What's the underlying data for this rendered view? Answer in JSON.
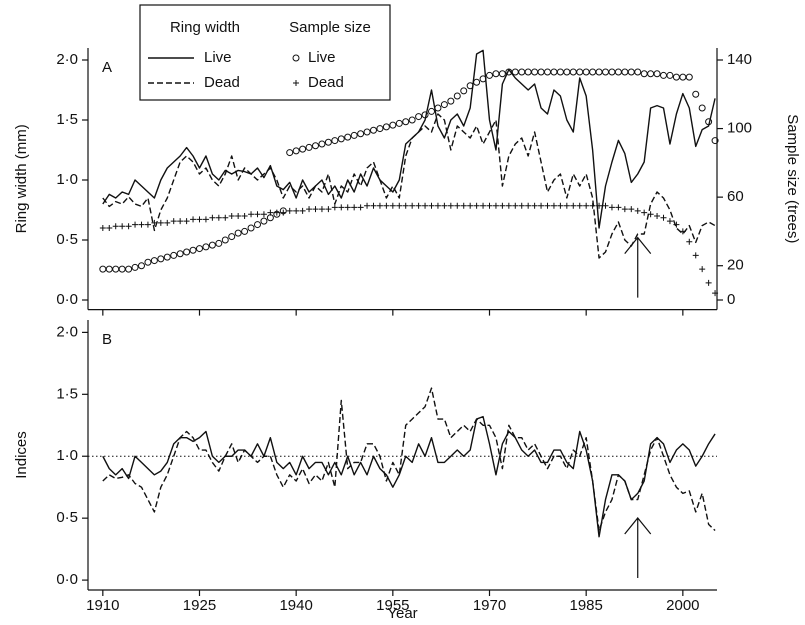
{
  "chart_data": [
    {
      "type": "line",
      "panel_label": "A",
      "y_label": "Ring width (mm)",
      "y2_label": "Sample size (trees)",
      "legend_titles": [
        "Ring width",
        "Sample size"
      ],
      "x": [
        1910,
        1911,
        1912,
        1913,
        1914,
        1915,
        1916,
        1917,
        1918,
        1919,
        1920,
        1921,
        1922,
        1923,
        1924,
        1925,
        1926,
        1927,
        1928,
        1929,
        1930,
        1931,
        1932,
        1933,
        1934,
        1935,
        1936,
        1937,
        1938,
        1939,
        1940,
        1941,
        1942,
        1943,
        1944,
        1945,
        1946,
        1947,
        1948,
        1949,
        1950,
        1951,
        1952,
        1953,
        1954,
        1955,
        1956,
        1957,
        1958,
        1959,
        1960,
        1961,
        1962,
        1963,
        1964,
        1965,
        1966,
        1967,
        1968,
        1969,
        1970,
        1971,
        1972,
        1973,
        1974,
        1975,
        1976,
        1977,
        1978,
        1979,
        1980,
        1981,
        1982,
        1983,
        1984,
        1985,
        1986,
        1987,
        1988,
        1989,
        1990,
        1991,
        1992,
        1993,
        1994,
        1995,
        1996,
        1997,
        1998,
        1999,
        2000,
        2001,
        2002,
        2003,
        2004,
        2005
      ],
      "xlim": [
        1907.7,
        2005.3
      ],
      "xticks": [
        1910,
        1925,
        1940,
        1955,
        1970,
        1985,
        2000
      ],
      "ylim": [
        -0.08,
        2.1
      ],
      "yticks": [
        {
          "value": 0,
          "label": "0·0"
        },
        {
          "value": 0.5,
          "label": "0·5"
        },
        {
          "value": 1,
          "label": "1·0"
        },
        {
          "value": 1.5,
          "label": "1·5"
        },
        {
          "value": 2,
          "label": "2·0"
        }
      ],
      "y2lim": [
        -5.6,
        147
      ],
      "y2ticks": [
        0,
        20,
        60,
        100,
        140
      ],
      "arrow_x": 1993,
      "series": [
        {
          "name": "Live",
          "color": "#111111",
          "style": "solid",
          "values": [
            0.8,
            0.88,
            0.85,
            0.9,
            0.88,
            1.0,
            0.95,
            0.9,
            0.85,
            1.0,
            1.1,
            1.15,
            1.2,
            1.27,
            1.2,
            1.1,
            1.2,
            1.05,
            1.0,
            1.08,
            1.05,
            1.08,
            1.07,
            1.05,
            1.1,
            1.02,
            1.12,
            0.95,
            0.92,
            0.98,
            0.85,
            1.0,
            0.9,
            0.95,
            1.0,
            0.88,
            0.95,
            0.85,
            1.0,
            0.9,
            1.05,
            0.95,
            1.1,
            1.0,
            0.95,
            0.9,
            1.0,
            1.3,
            1.35,
            1.4,
            1.5,
            1.75,
            1.45,
            1.35,
            1.5,
            1.55,
            1.45,
            1.6,
            2.05,
            2.08,
            1.5,
            1.25,
            1.8,
            1.92,
            1.85,
            1.8,
            1.75,
            1.8,
            1.6,
            1.55,
            1.75,
            1.7,
            1.5,
            1.4,
            1.85,
            1.7,
            1.25,
            0.6,
            0.95,
            1.15,
            1.33,
            1.22,
            0.98,
            1.05,
            1.15,
            1.6,
            1.62,
            1.6,
            1.3,
            1.55,
            1.72,
            1.6,
            1.28,
            1.42,
            1.45,
            1.68
          ]
        },
        {
          "name": "Dead",
          "color": "#111111",
          "style": "dashed",
          "values": [
            0.85,
            0.78,
            0.82,
            0.8,
            0.86,
            0.8,
            0.78,
            0.85,
            0.58,
            0.75,
            0.85,
            1.0,
            1.15,
            1.2,
            1.15,
            1.05,
            1.1,
            1.0,
            0.95,
            1.05,
            1.2,
            1.0,
            1.1,
            1.05,
            1.0,
            1.05,
            1.1,
            1.0,
            0.85,
            0.95,
            0.9,
            0.95,
            0.85,
            0.95,
            0.9,
            1.05,
            0.8,
            0.95,
            0.9,
            1.05,
            0.95,
            1.1,
            1.15,
            1.0,
            0.85,
            0.95,
            0.85,
            1.2,
            1.35,
            1.4,
            1.45,
            1.4,
            1.55,
            1.5,
            1.25,
            1.45,
            1.4,
            1.35,
            1.45,
            1.3,
            1.4,
            1.5,
            0.95,
            1.2,
            1.3,
            1.35,
            1.2,
            1.4,
            1.15,
            0.9,
            1.0,
            1.05,
            0.85,
            1.05,
            0.95,
            1.05,
            0.85,
            0.35,
            0.4,
            0.55,
            0.65,
            0.5,
            0.45,
            0.55,
            0.55,
            0.8,
            0.9,
            0.85,
            0.75,
            0.6,
            0.55,
            0.62,
            0.48,
            0.62,
            0.65,
            0.62
          ]
        },
        {
          "name": "Live",
          "color": "#111111",
          "marker": "circle",
          "axis": "y2",
          "values": [
            18,
            18,
            18,
            18,
            18,
            19,
            20,
            22,
            23,
            24,
            25,
            26,
            27,
            28,
            29,
            30,
            31,
            32,
            33,
            35,
            37,
            39,
            40,
            42,
            44,
            46,
            48,
            50,
            52,
            86,
            87,
            88,
            89,
            90,
            91,
            92,
            93,
            94,
            95,
            96,
            97,
            98,
            99,
            100,
            101,
            102,
            103,
            104,
            105,
            107,
            108,
            110,
            112,
            114,
            116,
            119,
            122,
            125,
            127,
            129,
            131,
            132,
            132,
            133,
            133,
            133,
            133,
            133,
            133,
            133,
            133,
            133,
            133,
            133,
            133,
            133,
            133,
            133,
            133,
            133,
            133,
            133,
            133,
            133,
            132,
            132,
            132,
            131,
            131,
            130,
            130,
            130,
            120,
            112,
            104,
            93
          ]
        },
        {
          "name": "Dead",
          "color": "#111111",
          "marker": "plus",
          "axis": "y2",
          "values": [
            42,
            42,
            43,
            43,
            43,
            44,
            44,
            44,
            45,
            45,
            45,
            46,
            46,
            46,
            47,
            47,
            47,
            48,
            48,
            48,
            49,
            49,
            49,
            50,
            50,
            50,
            51,
            51,
            51,
            52,
            52,
            52,
            53,
            53,
            53,
            53,
            54,
            54,
            54,
            54,
            54,
            55,
            55,
            55,
            55,
            55,
            55,
            55,
            55,
            55,
            55,
            55,
            55,
            55,
            55,
            55,
            55,
            55,
            55,
            55,
            55,
            55,
            55,
            55,
            55,
            55,
            55,
            55,
            55,
            55,
            55,
            55,
            55,
            55,
            55,
            55,
            55,
            55,
            55,
            54,
            54,
            53,
            53,
            52,
            51,
            50,
            49,
            48,
            46,
            44,
            40,
            34,
            26,
            18,
            10,
            4
          ]
        }
      ]
    },
    {
      "type": "line",
      "panel_label": "B",
      "y_label": "Indices",
      "x_label": "Year",
      "x": [
        1910,
        1911,
        1912,
        1913,
        1914,
        1915,
        1916,
        1917,
        1918,
        1919,
        1920,
        1921,
        1922,
        1923,
        1924,
        1925,
        1926,
        1927,
        1928,
        1929,
        1930,
        1931,
        1932,
        1933,
        1934,
        1935,
        1936,
        1937,
        1938,
        1939,
        1940,
        1941,
        1942,
        1943,
        1944,
        1945,
        1946,
        1947,
        1948,
        1949,
        1950,
        1951,
        1952,
        1953,
        1954,
        1955,
        1956,
        1957,
        1958,
        1959,
        1960,
        1961,
        1962,
        1963,
        1964,
        1965,
        1966,
        1967,
        1968,
        1969,
        1970,
        1971,
        1972,
        1973,
        1974,
        1975,
        1976,
        1977,
        1978,
        1979,
        1980,
        1981,
        1982,
        1983,
        1984,
        1985,
        1986,
        1987,
        1988,
        1989,
        1990,
        1991,
        1992,
        1993,
        1994,
        1995,
        1996,
        1997,
        1998,
        1999,
        2000,
        2001,
        2002,
        2003,
        2004,
        2005
      ],
      "xlim": [
        1907.7,
        2005.3
      ],
      "xticks": [
        1910,
        1925,
        1940,
        1955,
        1970,
        1985,
        2000
      ],
      "ylim": [
        -0.08,
        2.1
      ],
      "yticks": [
        {
          "value": 0,
          "label": "0·0"
        },
        {
          "value": 0.5,
          "label": "0·5"
        },
        {
          "value": 1,
          "label": "1·0"
        },
        {
          "value": 1.5,
          "label": "1·5"
        },
        {
          "value": 2,
          "label": "2·0"
        }
      ],
      "reference_line": 1,
      "arrow_x": 1993,
      "series": [
        {
          "name": "Live",
          "color": "#111111",
          "style": "solid",
          "values": [
            1.0,
            0.9,
            0.85,
            0.9,
            0.82,
            1.0,
            0.95,
            0.9,
            0.85,
            0.88,
            0.95,
            1.1,
            1.15,
            1.15,
            1.12,
            1.15,
            1.2,
            1.0,
            0.95,
            1.0,
            1.0,
            1.05,
            1.05,
            1.0,
            1.1,
            1.0,
            1.15,
            0.95,
            0.9,
            0.95,
            0.85,
            1.0,
            0.9,
            0.95,
            0.95,
            0.85,
            0.95,
            0.85,
            1.0,
            0.85,
            0.95,
            0.85,
            1.0,
            0.9,
            0.85,
            0.75,
            0.85,
            1.0,
            0.95,
            1.1,
            1.0,
            1.15,
            0.95,
            0.95,
            1.0,
            1.05,
            1.0,
            1.05,
            1.3,
            1.32,
            1.1,
            0.85,
            1.1,
            1.2,
            1.15,
            1.05,
            1.0,
            1.05,
            0.95,
            0.95,
            1.05,
            1.05,
            0.95,
            0.9,
            1.2,
            1.05,
            0.8,
            0.35,
            0.65,
            0.85,
            0.85,
            0.8,
            0.65,
            0.7,
            0.8,
            1.1,
            1.15,
            1.1,
            0.95,
            1.05,
            1.1,
            1.05,
            0.92,
            1.0,
            1.1,
            1.18
          ]
        },
        {
          "name": "Dead",
          "color": "#111111",
          "style": "dashed",
          "values": [
            0.8,
            0.85,
            0.82,
            0.83,
            0.85,
            0.78,
            0.75,
            0.65,
            0.55,
            0.75,
            0.85,
            1.0,
            1.15,
            1.2,
            1.15,
            1.05,
            1.05,
            0.95,
            0.88,
            1.0,
            1.1,
            0.95,
            1.05,
            1.0,
            0.95,
            1.0,
            1.0,
            0.85,
            0.75,
            0.85,
            0.8,
            0.9,
            0.78,
            0.85,
            0.8,
            0.95,
            0.75,
            1.45,
            0.9,
            0.95,
            0.95,
            1.1,
            1.1,
            1.0,
            0.8,
            0.95,
            0.85,
            1.25,
            1.3,
            1.35,
            1.4,
            1.55,
            1.3,
            1.3,
            1.15,
            1.2,
            1.25,
            1.2,
            1.3,
            1.25,
            1.25,
            1.15,
            0.9,
            1.25,
            1.15,
            1.15,
            1.05,
            1.1,
            1.0,
            0.9,
            1.0,
            1.0,
            0.9,
            1.05,
            1.0,
            1.15,
            0.8,
            0.4,
            0.55,
            0.65,
            0.85,
            0.8,
            0.65,
            0.65,
            0.85,
            1.05,
            1.15,
            1.0,
            0.85,
            0.75,
            0.7,
            0.72,
            0.55,
            0.7,
            0.45,
            0.4
          ]
        }
      ]
    }
  ]
}
